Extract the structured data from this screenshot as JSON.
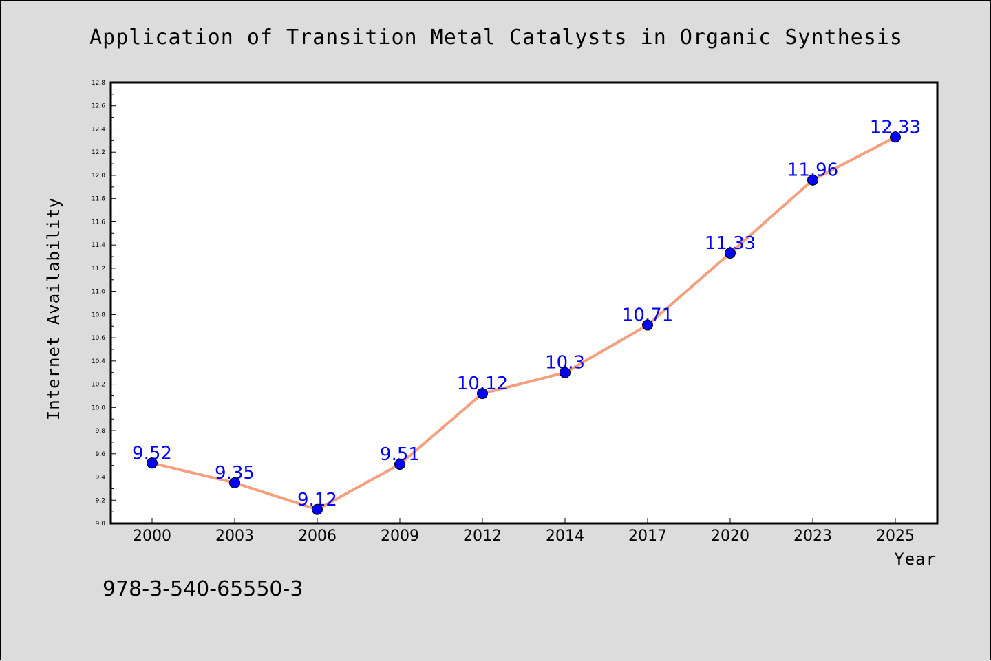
{
  "chart_data": {
    "type": "line",
    "title": "Application of Transition Metal Catalysts in Organic Synthesis",
    "xlabel": "Year",
    "ylabel": "Internet Availability",
    "categories": [
      "2000",
      "2003",
      "2006",
      "2009",
      "2012",
      "2014",
      "2017",
      "2020",
      "2023",
      "2025"
    ],
    "series": [
      {
        "values": [
          9.52,
          9.35,
          9.12,
          9.51,
          10.12,
          10.3,
          10.71,
          11.33,
          11.96,
          12.33
        ],
        "labels": [
          "9.52",
          "9.35",
          "9.12",
          "9.51",
          "10.12",
          "10.3",
          "10.71",
          "11.33",
          "11.96",
          "12.33"
        ]
      }
    ],
    "ylim": [
      9.0,
      12.8
    ],
    "yticks": [
      "9.0",
      "9.2",
      "9.4",
      "9.6",
      "9.8",
      "10.0",
      "10.2",
      "10.4",
      "10.6",
      "10.8",
      "11.0",
      "11.2",
      "11.4",
      "11.6",
      "11.8",
      "12.0",
      "12.2",
      "12.4",
      "12.6",
      "12.8"
    ],
    "grid": false,
    "legend": "none"
  },
  "footer_text": "978-3-540-65550-3",
  "colors": {
    "background": "#dcdcdc",
    "plot_background": "#ffffff",
    "line": "#f4a07e",
    "marker": "#0000ff",
    "data_label": "#0000ff"
  }
}
